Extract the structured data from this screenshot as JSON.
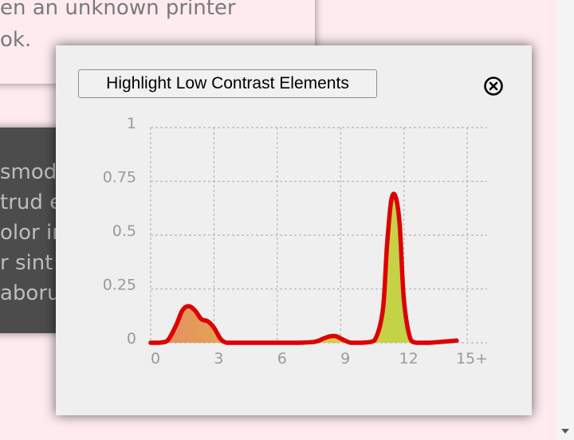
{
  "background": {
    "text_lines": [
      "en an unknown printer",
      "ok."
    ],
    "dark_lines": [
      "smod",
      "trud e",
      "olor in",
      "r sint",
      "aboru"
    ]
  },
  "dialog": {
    "highlight_button_label": "Highlight Low Contrast Elements",
    "close_icon": "close-circle-icon"
  },
  "chart_data": {
    "type": "area",
    "x_ticks": [
      "0",
      "3",
      "6",
      "9",
      "12",
      "15+"
    ],
    "y_ticks": [
      "0",
      "0.25",
      "0.5",
      "0.75",
      "1"
    ],
    "xlim": [
      0,
      15
    ],
    "ylim": [
      0,
      1
    ],
    "grid": true,
    "line_color": "#dd0000",
    "fill_gradient": [
      "#e48a64",
      "#e5c242",
      "#a8e04a"
    ],
    "series": [
      {
        "x": [
          0,
          0.4,
          0.8,
          1.2,
          1.5,
          1.8,
          2.1,
          2.4,
          2.7,
          3.0,
          3.3,
          3.6,
          4.2,
          5,
          6,
          7,
          7.8,
          8.2,
          8.5,
          8.8,
          9.1,
          9.5,
          10,
          10.6,
          11.0,
          11.2,
          11.4,
          11.6,
          11.8,
          12.0,
          12.3,
          12.6,
          13.2,
          14.5
        ],
        "y": [
          0,
          0,
          0.01,
          0.08,
          0.15,
          0.17,
          0.15,
          0.11,
          0.1,
          0.07,
          0.02,
          0.0,
          0,
          0,
          0,
          0,
          0.005,
          0.02,
          0.03,
          0.03,
          0.015,
          0,
          0,
          0.01,
          0.15,
          0.45,
          0.66,
          0.68,
          0.55,
          0.2,
          0.02,
          0,
          0,
          0.01
        ]
      }
    ]
  }
}
